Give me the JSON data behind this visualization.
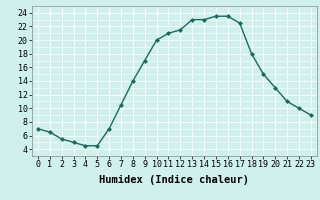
{
  "x": [
    0,
    1,
    2,
    3,
    4,
    5,
    6,
    7,
    8,
    9,
    10,
    11,
    12,
    13,
    14,
    15,
    16,
    17,
    18,
    19,
    20,
    21,
    22,
    23
  ],
  "y": [
    7,
    6.5,
    5.5,
    5,
    4.5,
    4.5,
    7,
    10.5,
    14,
    17,
    20,
    21,
    21.5,
    23,
    23,
    23.5,
    23.5,
    22.5,
    18,
    15,
    13,
    11,
    10,
    9
  ],
  "line_color": "#1a6b5e",
  "marker": "D",
  "marker_size": 2.0,
  "bg_color": "#cff0eb",
  "grid_color": "#ffffff",
  "xlabel": "Humidex (Indice chaleur)",
  "xlim": [
    -0.5,
    23.5
  ],
  "ylim": [
    3.0,
    25.0
  ],
  "yticks": [
    4,
    6,
    8,
    10,
    12,
    14,
    16,
    18,
    20,
    22,
    24
  ],
  "xticks": [
    0,
    1,
    2,
    3,
    4,
    5,
    6,
    7,
    8,
    9,
    10,
    11,
    12,
    13,
    14,
    15,
    16,
    17,
    18,
    19,
    20,
    21,
    22,
    23
  ],
  "xlabel_fontsize": 7.5,
  "tick_fontsize": 6.0
}
